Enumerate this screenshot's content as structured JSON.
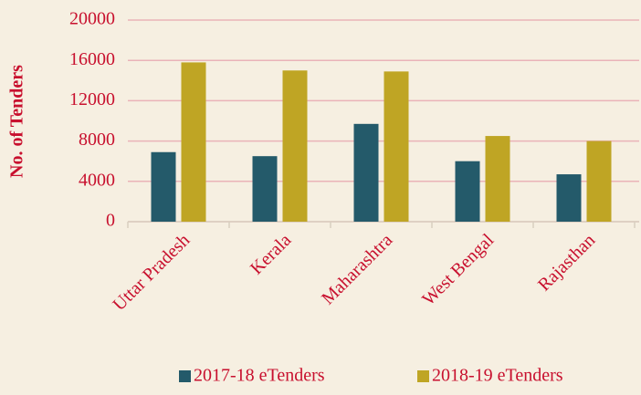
{
  "chart_data": {
    "type": "bar",
    "y_label": "No. of Tenders",
    "categories": [
      "Uttar Pradesh",
      "Kerala",
      "Maharashtra",
      "West Bengal",
      "Rajasthan"
    ],
    "series": [
      {
        "name": "2017-18 eTenders",
        "color": "#245a6a",
        "values": [
          6900,
          6500,
          9700,
          6000,
          4700
        ]
      },
      {
        "name": "2018-19 eTenders",
        "color": "#bfa524",
        "values": [
          15800,
          15000,
          14900,
          8500,
          8000
        ]
      }
    ],
    "ylim": [
      0,
      20000
    ],
    "yticks": [
      0,
      4000,
      8000,
      12000,
      16000,
      20000
    ],
    "grid": true,
    "legend": "bottom"
  }
}
